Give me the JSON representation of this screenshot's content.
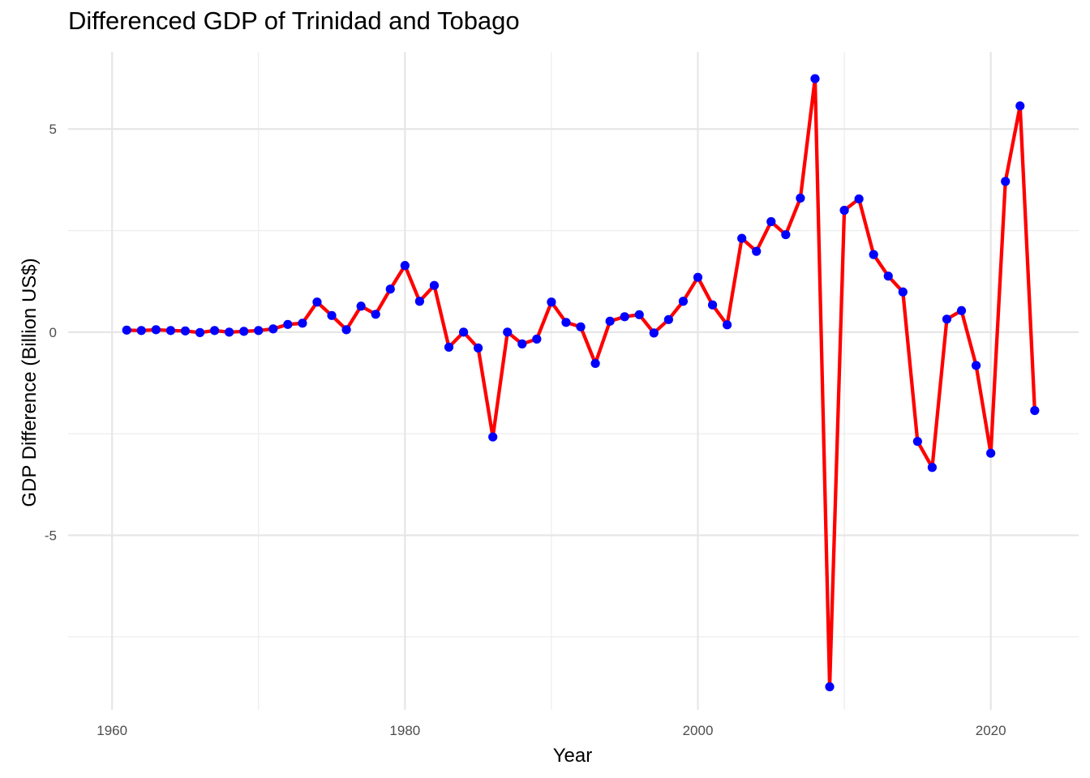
{
  "chart_data": {
    "type": "line",
    "title": "Differenced GDP of Trinidad and Tobago",
    "xlabel": "Year",
    "ylabel": "GDP Difference (Billion US$)",
    "xlim": [
      1957,
      2026
    ],
    "ylim": [
      -9.3,
      6.9
    ],
    "x_ticks": [
      1960,
      1980,
      2000,
      2020
    ],
    "y_ticks": [
      5,
      0,
      -5
    ],
    "y_tick_labels": [
      "5",
      "0",
      "-5"
    ],
    "x_minor_ticks": [
      1970,
      1990,
      2010
    ],
    "y_minor_ticks": [
      2.5,
      -2.5,
      -7.5
    ],
    "grid": true,
    "line_color": "#ff0000",
    "point_color": "#0000ff",
    "series": [
      {
        "x": [
          1961,
          1962,
          1963,
          1964,
          1965,
          1966,
          1967,
          1968,
          1969,
          1970,
          1971,
          1972,
          1973,
          1974,
          1975,
          1976,
          1977,
          1978,
          1979,
          1980,
          1981,
          1982,
          1983,
          1984,
          1985,
          1986,
          1987,
          1988,
          1989,
          1990,
          1991,
          1992,
          1993,
          1994,
          1995,
          1996,
          1997,
          1998,
          1999,
          2000,
          2001,
          2002,
          2003,
          2004,
          2005,
          2006,
          2007,
          2008,
          2009,
          2010,
          2011,
          2012,
          2013,
          2014,
          2015,
          2016,
          2017,
          2018,
          2019,
          2020,
          2021,
          2022,
          2023
        ],
        "values": [
          0.05,
          0.04,
          0.06,
          0.04,
          0.03,
          -0.01,
          0.04,
          0.0,
          0.02,
          0.04,
          0.08,
          0.19,
          0.22,
          0.74,
          0.41,
          0.06,
          0.64,
          0.44,
          1.06,
          1.64,
          0.76,
          1.15,
          -0.37,
          0.0,
          -0.39,
          -2.58,
          0.0,
          -0.29,
          -0.17,
          0.74,
          0.24,
          0.13,
          -0.77,
          0.27,
          0.38,
          0.43,
          -0.02,
          0.31,
          0.76,
          1.35,
          0.67,
          0.18,
          2.31,
          1.99,
          2.72,
          2.4,
          3.3,
          6.24,
          -8.73,
          3.0,
          3.28,
          1.91,
          1.38,
          0.99,
          -2.69,
          -3.33,
          0.32,
          0.53,
          -0.82,
          -2.98,
          3.71,
          5.57,
          -1.93
        ]
      }
    ]
  }
}
